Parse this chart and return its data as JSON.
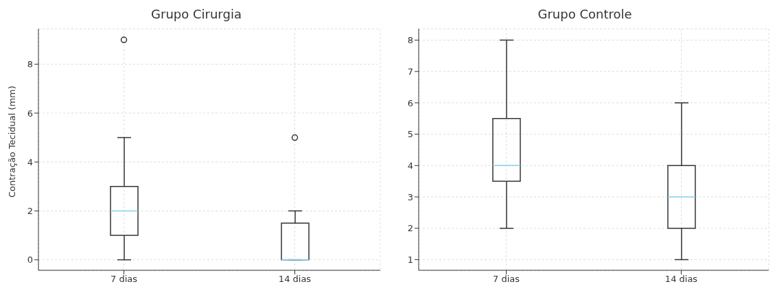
{
  "chart_data": [
    {
      "type": "box",
      "title": "Grupo Cirurgia",
      "ylabel": "Contração Tecidual (mm)",
      "categories": [
        "7 dias",
        "14 dias"
      ],
      "ylim": [
        -0.43,
        9.45
      ],
      "yticks": [
        0,
        2,
        4,
        6,
        8
      ],
      "grid": true,
      "series": [
        {
          "color": "#333333",
          "boxes": [
            {
              "low": 0,
              "q1": 1,
              "median": 2,
              "q3": 3,
              "high": 5,
              "outliers": [
                9
              ]
            },
            {
              "low": 0,
              "q1": 0,
              "median": 0,
              "q3": 1.5,
              "high": 2,
              "outliers": [
                5
              ]
            }
          ]
        }
      ]
    },
    {
      "type": "box",
      "title": "Grupo Controle",
      "categories": [
        "7 dias",
        "14 dias"
      ],
      "ylim": [
        0.66,
        8.36
      ],
      "yticks": [
        1,
        2,
        3,
        4,
        5,
        6,
        7,
        8
      ],
      "grid": true,
      "series": [
        {
          "color": "#333333",
          "boxes": [
            {
              "low": 2,
              "q1": 3.5,
              "median": 4,
              "q3": 5.5,
              "high": 8
            },
            {
              "low": 1,
              "q1": 2,
              "median": 3,
              "q3": 4,
              "high": 6
            }
          ]
        }
      ]
    }
  ]
}
